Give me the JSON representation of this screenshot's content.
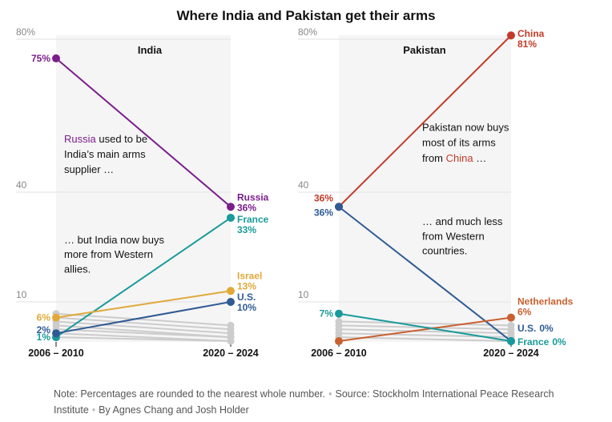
{
  "title": "Where India and Pakistan get their arms",
  "colors": {
    "russia": "#7b1e8c",
    "france": "#1a9a9a",
    "israel": "#e0a93a",
    "us": "#2f5b95",
    "china": "#c23b2a",
    "netherlands": "#c8602f",
    "other": "#cccccc",
    "panel_bg": "#f5f5f5"
  },
  "chart_data": [
    {
      "type": "line",
      "panel_title": "India",
      "x": [
        "2006 – 2010",
        "2020 – 2024"
      ],
      "y_ticks": [
        "80%",
        "40",
        "10"
      ],
      "ylim": [
        0,
        80
      ],
      "series": [
        {
          "name": "Russia",
          "color_key": "russia",
          "values": [
            75,
            36
          ],
          "start_label": "75%",
          "end_value_label": "36%"
        },
        {
          "name": "France",
          "color_key": "france",
          "values": [
            1,
            33
          ],
          "start_label": "1%",
          "end_value_label": "33%"
        },
        {
          "name": "Israel",
          "color_key": "israel",
          "values": [
            6,
            13
          ],
          "start_label": "6%",
          "end_value_label": "13%"
        },
        {
          "name": "U.S.",
          "color_key": "us",
          "values": [
            2,
            10
          ],
          "start_label": "2%",
          "end_value_label": "10%"
        }
      ],
      "other_series": [
        [
          7,
          4
        ],
        [
          6,
          3
        ],
        [
          5,
          2
        ],
        [
          4,
          1
        ],
        [
          3,
          1
        ],
        [
          2,
          0
        ],
        [
          1,
          0
        ]
      ],
      "annotations": [
        {
          "segments": [
            {
              "text": "Russia",
              "color_key": "russia"
            },
            {
              "text": " used to be"
            }
          ],
          "y": 53
        },
        {
          "segments": [
            {
              "text": "India’s main arms"
            }
          ],
          "y": 49
        },
        {
          "segments": [
            {
              "text": "supplier …"
            }
          ],
          "y": 45
        },
        {
          "segments": [
            {
              "text": "… but India now buys"
            }
          ],
          "y": 26
        },
        {
          "segments": [
            {
              "text": "more from Western"
            }
          ],
          "y": 22
        },
        {
          "segments": [
            {
              "text": "allies."
            }
          ],
          "y": 18
        }
      ]
    },
    {
      "type": "line",
      "panel_title": "Pakistan",
      "x": [
        "2006 – 2010",
        "2020 – 2024"
      ],
      "y_ticks": [
        "80%",
        "40",
        "10"
      ],
      "ylim": [
        0,
        80
      ],
      "series": [
        {
          "name": "China",
          "color_key": "china",
          "values": [
            36,
            81
          ],
          "start_label": "36%",
          "end_value_label": "81%"
        },
        {
          "name": "U.S.",
          "color_key": "us",
          "values": [
            36,
            0
          ],
          "start_label": "36%",
          "end_value_label": "0%"
        },
        {
          "name": "Netherlands",
          "color_key": "netherlands",
          "values": [
            0,
            6
          ],
          "start_label": "",
          "end_value_label": "6%"
        },
        {
          "name": "France",
          "color_key": "france",
          "values": [
            7,
            0
          ],
          "start_label": "7%",
          "end_value_label": "0%"
        }
      ],
      "other_series": [
        [
          5,
          4
        ],
        [
          4,
          3
        ],
        [
          3,
          2
        ],
        [
          2,
          1
        ],
        [
          1,
          0
        ]
      ],
      "annotations": [
        {
          "segments": [
            {
              "text": "Pakistan now buys"
            }
          ],
          "y": 56
        },
        {
          "segments": [
            {
              "text": "most of its arms"
            }
          ],
          "y": 52
        },
        {
          "segments": [
            {
              "text": "from "
            },
            {
              "text": "China",
              "color_key": "china"
            },
            {
              "text": " …"
            }
          ],
          "y": 48
        },
        {
          "segments": [
            {
              "text": "… and much less"
            }
          ],
          "y": 31
        },
        {
          "segments": [
            {
              "text": "from Western"
            }
          ],
          "y": 27
        },
        {
          "segments": [
            {
              "text": "countries."
            }
          ],
          "y": 23
        }
      ]
    }
  ],
  "footnote": {
    "note": "Note: Percentages are rounded to the nearest whole number.",
    "source": "Source: Stockholm International Peace Research Institute",
    "byline": "By Agnes Chang and Josh Holder"
  }
}
